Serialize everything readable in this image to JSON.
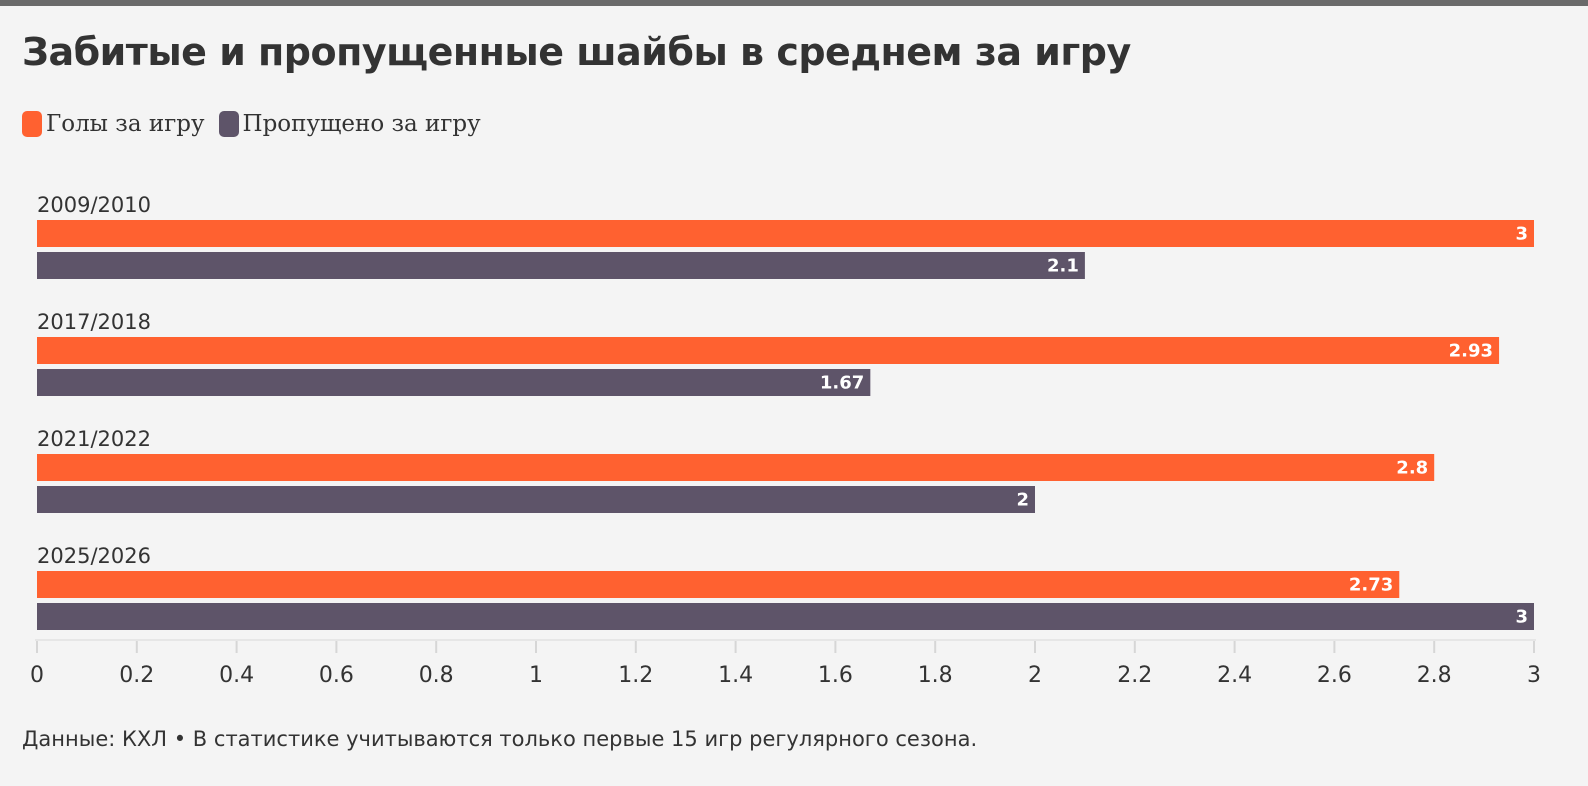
{
  "title": "Забитые и пропущенные шайбы в среднем за игру",
  "legend": [
    {
      "label": "Голы за игру",
      "color": "#ff6130"
    },
    {
      "label": "Пропущено за игру",
      "color": "#5e5469"
    }
  ],
  "source": "Данные: КХЛ • В статистике учитываются только первые 15 игр регулярного сезона.",
  "chart_data": {
    "type": "bar",
    "orientation": "horizontal",
    "title": "Забитые и пропущенные шайбы в среднем за игру",
    "categories": [
      "2009/2010",
      "2017/2018",
      "2021/2022",
      "2025/2026"
    ],
    "series": [
      {
        "name": "Голы за игру",
        "color": "#ff6130",
        "values": [
          3,
          2.93,
          2.8,
          2.73
        ],
        "labels": [
          "3",
          "2.93",
          "2.8",
          "2.73"
        ]
      },
      {
        "name": "Пропущено за игру",
        "color": "#5e5469",
        "values": [
          2.1,
          1.67,
          2,
          3
        ],
        "labels": [
          "2.1",
          "1.67",
          "2",
          "3"
        ]
      }
    ],
    "xlim": [
      0,
      3
    ],
    "ticks": [
      0,
      0.2,
      0.4,
      0.6,
      0.8,
      1,
      1.2,
      1.4,
      1.6,
      1.8,
      2,
      2.2,
      2.4,
      2.6,
      2.8,
      3
    ],
    "tick_labels": [
      "0",
      "0.2",
      "0.4",
      "0.6",
      "0.8",
      "1",
      "1.2",
      "1.4",
      "1.6",
      "1.8",
      "2",
      "2.2",
      "2.4",
      "2.6",
      "2.8",
      "3"
    ],
    "legend_position": "top-left",
    "grid": false,
    "xlabel": "",
    "ylabel": ""
  }
}
